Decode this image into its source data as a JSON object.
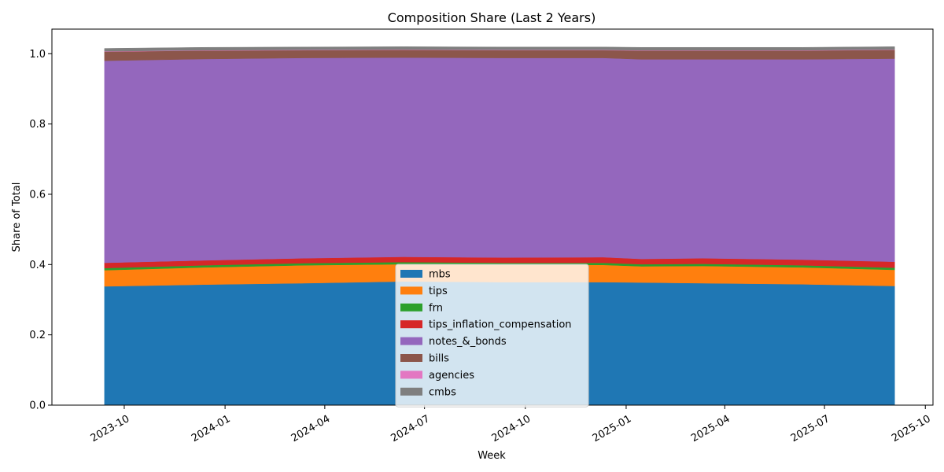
{
  "chart_data": {
    "type": "area",
    "title": "Composition Share (Last 2 Years)",
    "xlabel": "Week",
    "ylabel": "Share of Total",
    "x_range": [
      "2023-07-27",
      "2025-10-08"
    ],
    "ylim": [
      0,
      1.07
    ],
    "yticks": [
      0.0,
      0.2,
      0.4,
      0.6,
      0.8,
      1.0
    ],
    "ytick_labels": [
      "0.0",
      "0.2",
      "0.4",
      "0.6",
      "0.8",
      "1.0"
    ],
    "xticks": [
      "2023-10-01",
      "2024-01-01",
      "2024-04-01",
      "2024-07-01",
      "2024-10-01",
      "2025-01-01",
      "2025-04-01",
      "2025-07-01",
      "2025-10-01"
    ],
    "xtick_labels": [
      "2023-10",
      "2024-01",
      "2024-04",
      "2024-07",
      "2024-10",
      "2025-01",
      "2025-04",
      "2025-07",
      "2025-10"
    ],
    "grid": false,
    "legend_position": "bottom-center",
    "x": [
      "2023-09-13",
      "2023-12-13",
      "2024-03-13",
      "2024-06-12",
      "2024-09-11",
      "2024-12-11",
      "2025-01-15",
      "2025-03-12",
      "2025-06-11",
      "2025-09-03"
    ],
    "series": [
      {
        "name": "mbs",
        "color": "#1f77b4",
        "values": [
          0.338,
          0.343,
          0.347,
          0.352,
          0.35,
          0.35,
          0.349,
          0.347,
          0.344,
          0.339
        ]
      },
      {
        "name": "tips",
        "color": "#ff7f0e",
        "values": [
          0.046,
          0.049,
          0.051,
          0.049,
          0.049,
          0.049,
          0.046,
          0.049,
          0.048,
          0.046
        ]
      },
      {
        "name": "frn",
        "color": "#2ca02c",
        "values": [
          0.006,
          0.006,
          0.006,
          0.006,
          0.006,
          0.006,
          0.006,
          0.006,
          0.006,
          0.006
        ]
      },
      {
        "name": "tips_inflation_compensation",
        "color": "#d62728",
        "values": [
          0.015,
          0.014,
          0.014,
          0.015,
          0.015,
          0.016,
          0.015,
          0.016,
          0.016,
          0.017
        ]
      },
      {
        "name": "notes_&_bonds",
        "color": "#9467bd",
        "values": [
          0.575,
          0.573,
          0.57,
          0.567,
          0.568,
          0.567,
          0.568,
          0.566,
          0.57,
          0.578
        ]
      },
      {
        "name": "bills",
        "color": "#8c564b",
        "values": [
          0.026,
          0.024,
          0.022,
          0.022,
          0.022,
          0.022,
          0.025,
          0.025,
          0.025,
          0.025
        ]
      },
      {
        "name": "agencies",
        "color": "#e377c2",
        "values": [
          0.001,
          0.001,
          0.001,
          0.001,
          0.001,
          0.001,
          0.001,
          0.001,
          0.001,
          0.001
        ]
      },
      {
        "name": "cmbs",
        "color": "#7f7f7f",
        "values": [
          0.008,
          0.008,
          0.008,
          0.008,
          0.008,
          0.008,
          0.008,
          0.008,
          0.008,
          0.008
        ]
      }
    ]
  }
}
